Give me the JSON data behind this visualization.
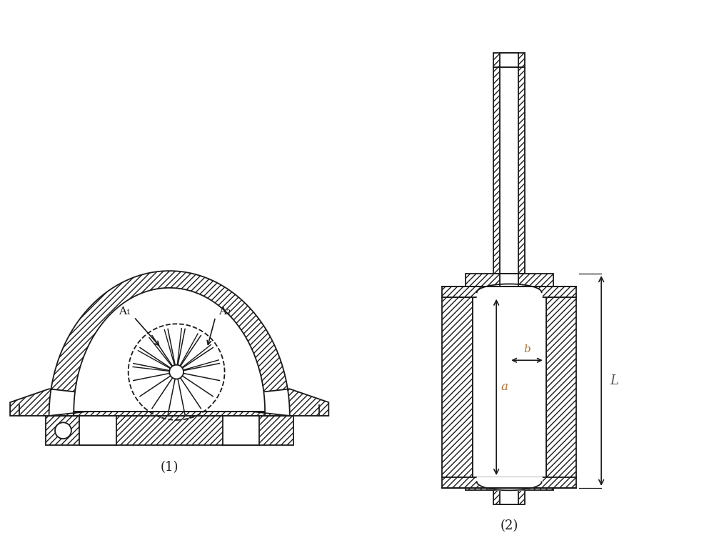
{
  "background_color": "#ffffff",
  "line_color": "#1a1a1a",
  "label_color_a": "#b07030",
  "label_color_b": "#b07030",
  "label_color_L": "#555555",
  "fig_label1": "(1)",
  "fig_label2": "(2)",
  "A1_label": "A₁",
  "A2_label": "A₂",
  "a_label": "a",
  "b_label": "b",
  "L_label": "L"
}
